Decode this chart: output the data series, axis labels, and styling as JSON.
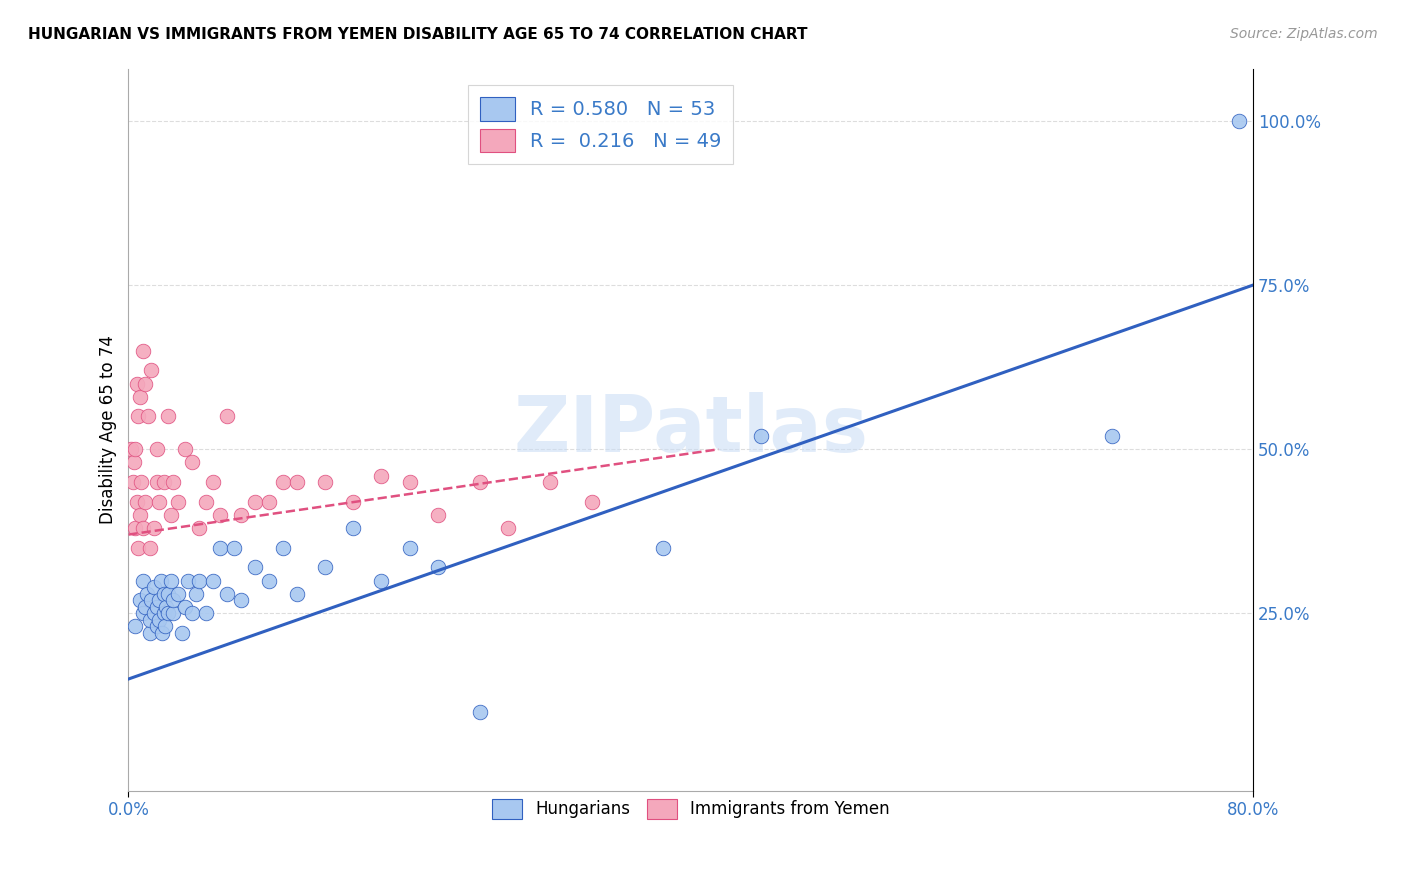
{
  "title": "HUNGARIAN VS IMMIGRANTS FROM YEMEN DISABILITY AGE 65 TO 74 CORRELATION CHART",
  "source": "Source: ZipAtlas.com",
  "ylabel": "Disability Age 65 to 74",
  "watermark": "ZIPatlas",
  "blue_label": "Hungarians",
  "pink_label": "Immigrants from Yemen",
  "blue_R": 0.58,
  "blue_N": 53,
  "pink_R": 0.216,
  "pink_N": 49,
  "blue_color": "#A8C8F0",
  "pink_color": "#F4A8BC",
  "blue_line_color": "#3060C0",
  "pink_line_color": "#E05080",
  "xlim": [
    0.0,
    0.8
  ],
  "ylim": [
    -0.02,
    1.08
  ],
  "xtick_vals": [
    0.0,
    0.8
  ],
  "xtick_labels": [
    "0.0%",
    "80.0%"
  ],
  "yticks_right": [
    0.25,
    0.5,
    0.75,
    1.0
  ],
  "ytick_labels_right": [
    "25.0%",
    "50.0%",
    "75.0%",
    "100.0%"
  ],
  "grid_color": "#DDDDDD",
  "blue_line_x0": 0.0,
  "blue_line_y0": 0.15,
  "blue_line_x1": 0.8,
  "blue_line_y1": 0.75,
  "pink_line_x0": 0.0,
  "pink_line_y0": 0.37,
  "pink_line_x1": 0.42,
  "pink_line_y1": 0.5,
  "blue_points_x": [
    0.005,
    0.008,
    0.01,
    0.01,
    0.012,
    0.013,
    0.015,
    0.015,
    0.016,
    0.018,
    0.018,
    0.02,
    0.02,
    0.022,
    0.022,
    0.023,
    0.024,
    0.025,
    0.025,
    0.026,
    0.027,
    0.028,
    0.028,
    0.03,
    0.032,
    0.032,
    0.035,
    0.038,
    0.04,
    0.042,
    0.045,
    0.048,
    0.05,
    0.055,
    0.06,
    0.065,
    0.07,
    0.075,
    0.08,
    0.09,
    0.1,
    0.11,
    0.12,
    0.14,
    0.16,
    0.18,
    0.2,
    0.22,
    0.25,
    0.38,
    0.45,
    0.7,
    0.79
  ],
  "blue_points_y": [
    0.23,
    0.27,
    0.25,
    0.3,
    0.26,
    0.28,
    0.22,
    0.24,
    0.27,
    0.25,
    0.29,
    0.23,
    0.26,
    0.24,
    0.27,
    0.3,
    0.22,
    0.25,
    0.28,
    0.23,
    0.26,
    0.25,
    0.28,
    0.3,
    0.25,
    0.27,
    0.28,
    0.22,
    0.26,
    0.3,
    0.25,
    0.28,
    0.3,
    0.25,
    0.3,
    0.35,
    0.28,
    0.35,
    0.27,
    0.32,
    0.3,
    0.35,
    0.28,
    0.32,
    0.38,
    0.3,
    0.35,
    0.32,
    0.1,
    0.35,
    0.52,
    0.52,
    1.0
  ],
  "pink_points_x": [
    0.002,
    0.003,
    0.004,
    0.005,
    0.005,
    0.006,
    0.006,
    0.007,
    0.007,
    0.008,
    0.008,
    0.009,
    0.01,
    0.01,
    0.012,
    0.012,
    0.014,
    0.015,
    0.016,
    0.018,
    0.02,
    0.02,
    0.022,
    0.025,
    0.028,
    0.03,
    0.032,
    0.035,
    0.04,
    0.045,
    0.05,
    0.055,
    0.06,
    0.065,
    0.07,
    0.08,
    0.09,
    0.1,
    0.11,
    0.12,
    0.14,
    0.16,
    0.18,
    0.2,
    0.22,
    0.25,
    0.27,
    0.3,
    0.33
  ],
  "pink_points_y": [
    0.5,
    0.45,
    0.48,
    0.38,
    0.5,
    0.42,
    0.6,
    0.35,
    0.55,
    0.4,
    0.58,
    0.45,
    0.38,
    0.65,
    0.42,
    0.6,
    0.55,
    0.35,
    0.62,
    0.38,
    0.45,
    0.5,
    0.42,
    0.45,
    0.55,
    0.4,
    0.45,
    0.42,
    0.5,
    0.48,
    0.38,
    0.42,
    0.45,
    0.4,
    0.55,
    0.4,
    0.42,
    0.42,
    0.45,
    0.45,
    0.45,
    0.42,
    0.46,
    0.45,
    0.4,
    0.45,
    0.38,
    0.45,
    0.42
  ]
}
